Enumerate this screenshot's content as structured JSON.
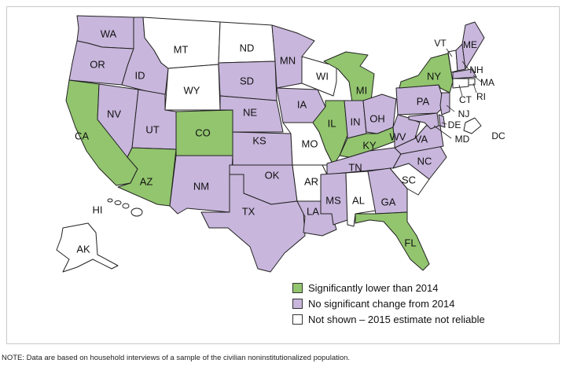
{
  "colors": {
    "lower": "#92c56e",
    "no_change": "#c8b6dc",
    "not_shown": "#ffffff"
  },
  "legend": {
    "lower": "Significantly lower than 2014",
    "no_change": "No significant change from 2014",
    "not_shown": "Not shown – 2015 estimate not reliable"
  },
  "note": "NOTE: Data are based on household interviews of a sample of the civilian noninstitutionalized population.",
  "states": [
    {
      "id": "WA",
      "label": "WA",
      "category": "no_change"
    },
    {
      "id": "OR",
      "label": "OR",
      "category": "no_change"
    },
    {
      "id": "CA",
      "label": "CA",
      "category": "lower"
    },
    {
      "id": "ID",
      "label": "ID",
      "category": "no_change"
    },
    {
      "id": "NV",
      "label": "NV",
      "category": "no_change"
    },
    {
      "id": "MT",
      "label": "MT",
      "category": "not_shown"
    },
    {
      "id": "WY",
      "label": "WY",
      "category": "not_shown"
    },
    {
      "id": "UT",
      "label": "UT",
      "category": "no_change"
    },
    {
      "id": "AZ",
      "label": "AZ",
      "category": "lower"
    },
    {
      "id": "CO",
      "label": "CO",
      "category": "lower"
    },
    {
      "id": "NM",
      "label": "NM",
      "category": "no_change"
    },
    {
      "id": "ND",
      "label": "ND",
      "category": "not_shown"
    },
    {
      "id": "SD",
      "label": "SD",
      "category": "no_change"
    },
    {
      "id": "NE",
      "label": "NE",
      "category": "no_change"
    },
    {
      "id": "KS",
      "label": "KS",
      "category": "no_change"
    },
    {
      "id": "OK",
      "label": "OK",
      "category": "no_change"
    },
    {
      "id": "TX",
      "label": "TX",
      "category": "no_change"
    },
    {
      "id": "MN",
      "label": "MN",
      "category": "no_change"
    },
    {
      "id": "IA",
      "label": "IA",
      "category": "no_change"
    },
    {
      "id": "MO",
      "label": "MO",
      "category": "not_shown"
    },
    {
      "id": "AR",
      "label": "AR",
      "category": "not_shown"
    },
    {
      "id": "LA",
      "label": "LA",
      "category": "no_change"
    },
    {
      "id": "WI",
      "label": "WI",
      "category": "not_shown"
    },
    {
      "id": "IL",
      "label": "IL",
      "category": "lower"
    },
    {
      "id": "MI",
      "label": "MI",
      "category": "lower"
    },
    {
      "id": "IN",
      "label": "IN",
      "category": "no_change"
    },
    {
      "id": "OH",
      "label": "OH",
      "category": "no_change"
    },
    {
      "id": "KY",
      "label": "KY",
      "category": "lower"
    },
    {
      "id": "TN",
      "label": "TN",
      "category": "no_change"
    },
    {
      "id": "MS",
      "label": "MS",
      "category": "no_change"
    },
    {
      "id": "AL",
      "label": "AL",
      "category": "not_shown"
    },
    {
      "id": "GA",
      "label": "GA",
      "category": "no_change"
    },
    {
      "id": "FL",
      "label": "FL",
      "category": "lower"
    },
    {
      "id": "SC",
      "label": "SC",
      "category": "not_shown"
    },
    {
      "id": "NC",
      "label": "NC",
      "category": "no_change"
    },
    {
      "id": "VA",
      "label": "VA",
      "category": "no_change"
    },
    {
      "id": "WV",
      "label": "WV",
      "category": "no_change"
    },
    {
      "id": "PA",
      "label": "PA",
      "category": "no_change"
    },
    {
      "id": "NY",
      "label": "NY",
      "category": "lower"
    },
    {
      "id": "VT",
      "label": "VT",
      "category": "not_shown"
    },
    {
      "id": "NH",
      "label": "NH",
      "category": "no_change"
    },
    {
      "id": "ME",
      "label": "ME",
      "category": "no_change"
    },
    {
      "id": "MA",
      "label": "MA",
      "category": "no_change"
    },
    {
      "id": "RI",
      "label": "RI",
      "category": "not_shown"
    },
    {
      "id": "CT",
      "label": "CT",
      "category": "not_shown"
    },
    {
      "id": "NJ",
      "label": "NJ",
      "category": "no_change"
    },
    {
      "id": "DE",
      "label": "DE",
      "category": "no_change"
    },
    {
      "id": "MD",
      "label": "MD",
      "category": "no_change"
    },
    {
      "id": "DC",
      "label": "DC",
      "category": "not_shown"
    },
    {
      "id": "AK",
      "label": "AK",
      "category": "not_shown"
    },
    {
      "id": "HI",
      "label": "HI",
      "category": "not_shown"
    }
  ]
}
